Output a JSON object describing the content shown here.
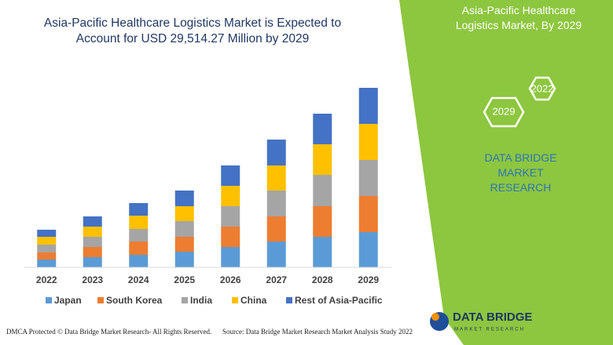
{
  "chart_data": {
    "type": "stacked-bar",
    "title": "Asia-Pacific Healthcare Logistics Market is Expected to Account for USD 29,514.27 Million by 2029",
    "categories": [
      "2022",
      "2023",
      "2024",
      "2025",
      "2026",
      "2027",
      "2028",
      "2029"
    ],
    "series": [
      {
        "name": "Japan",
        "color": "#5b9bd5",
        "values": [
          10,
          13,
          16,
          20,
          26,
          33,
          39,
          45
        ]
      },
      {
        "name": "South Korea",
        "color": "#ed7d31",
        "values": [
          9,
          13,
          17,
          19,
          26,
          32,
          39,
          46
        ]
      },
      {
        "name": "India",
        "color": "#a5a5a5",
        "values": [
          10,
          13,
          16,
          20,
          26,
          33,
          40,
          46
        ]
      },
      {
        "name": "China",
        "color": "#ffc000",
        "values": [
          10,
          13,
          17,
          19,
          26,
          32,
          39,
          46
        ]
      },
      {
        "name": "Rest of Asia-Pacific",
        "color": "#4472c4",
        "values": [
          9,
          13,
          16,
          20,
          26,
          33,
          39,
          46
        ]
      }
    ],
    "ylim": [
      0,
      240
    ]
  },
  "panel": {
    "title": "Asia-Pacific Healthcare Logistics Market, By 2029",
    "start_year": "2022",
    "end_year": "2029",
    "company": "DATA BRIDGE MARKET RESEARCH"
  },
  "footer": {
    "dmca": "DMCA Protected © Data Bridge Market Research- All Rights Reserved.",
    "source": "Source: Data Bridge Market Research Market Analysis Study 2022",
    "logo_name": "DATA BRIDGE",
    "logo_tagline": "MARKET RESEARCH"
  }
}
